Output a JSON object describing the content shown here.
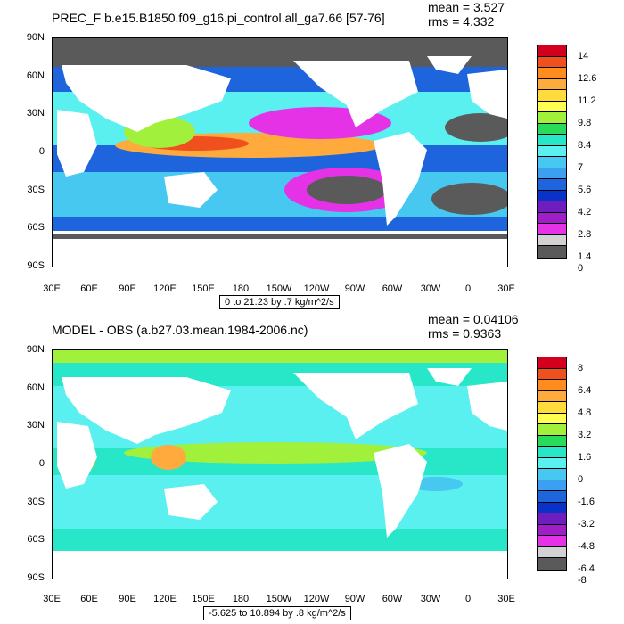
{
  "panels": [
    {
      "title": "PREC_F b.e15.B1850.f09_g16.pi_control.all_ga7.66 [57-76]",
      "mean": "mean = 3.527",
      "rms": "rms = 4.332",
      "range_note": "0 to 21.23 by .7 kg/m^2/s",
      "lat_labels": [
        "90N",
        "60N",
        "30N",
        "0",
        "30S",
        "60S",
        "90S"
      ],
      "lon_labels": [
        "30E",
        "60E",
        "90E",
        "120E",
        "150E",
        "180",
        "150W",
        "120W",
        "90W",
        "60W",
        "30W",
        "0",
        "30E"
      ],
      "colorbar_labels": [
        "14",
        "12.6",
        "11.2",
        "9.8",
        "8.4",
        "7",
        "5.6",
        "4.2",
        "2.8",
        "1.4",
        "0"
      ],
      "colorbar_colors": [
        "#d2001e",
        "#f0501e",
        "#ff8c1e",
        "#ffaa3c",
        "#ffdc3c",
        "#ffff50",
        "#a0f03c",
        "#28dc5a",
        "#28e6c8",
        "#5af0f0",
        "#46c8f0",
        "#3ca0f0",
        "#1e64dc",
        "#0a32c8",
        "#6e1ebe",
        "#a01ec8",
        "#e632e6",
        "#d2d2d2",
        "#5a5a5a"
      ],
      "colorbar_label_rows": [
        0,
        2,
        4,
        6,
        8,
        10,
        12,
        14,
        16,
        18,
        19
      ]
    },
    {
      "title": "MODEL - OBS (a.b27.03.mean.1984-2006.nc)",
      "mean": "mean = 0.04106",
      "rms": "rms = 0.9363",
      "range_note": "-5.625 to 10.894 by .8 kg/m^2/s",
      "lat_labels": [
        "90N",
        "60N",
        "30N",
        "0",
        "30S",
        "60S",
        "90S"
      ],
      "lon_labels": [
        "30E",
        "60E",
        "90E",
        "120E",
        "150E",
        "180",
        "150W",
        "120W",
        "90W",
        "60W",
        "30W",
        "0",
        "30E"
      ],
      "colorbar_labels": [
        "8",
        "6.4",
        "4.8",
        "3.2",
        "1.6",
        "0",
        "-1.6",
        "-3.2",
        "-4.8",
        "-6.4",
        "-8"
      ],
      "colorbar_colors": [
        "#d2001e",
        "#f0501e",
        "#ff8c1e",
        "#ffaa3c",
        "#ffdc3c",
        "#ffff50",
        "#a0f03c",
        "#28dc5a",
        "#28e6c8",
        "#5af0f0",
        "#46c8f0",
        "#3ca0f0",
        "#1e64dc",
        "#0a32c8",
        "#6e1ebe",
        "#a01ec8",
        "#e632e6",
        "#d2d2d2",
        "#5a5a5a"
      ],
      "colorbar_label_rows": [
        0,
        2,
        4,
        6,
        8,
        10,
        12,
        14,
        16,
        18,
        19
      ]
    }
  ]
}
